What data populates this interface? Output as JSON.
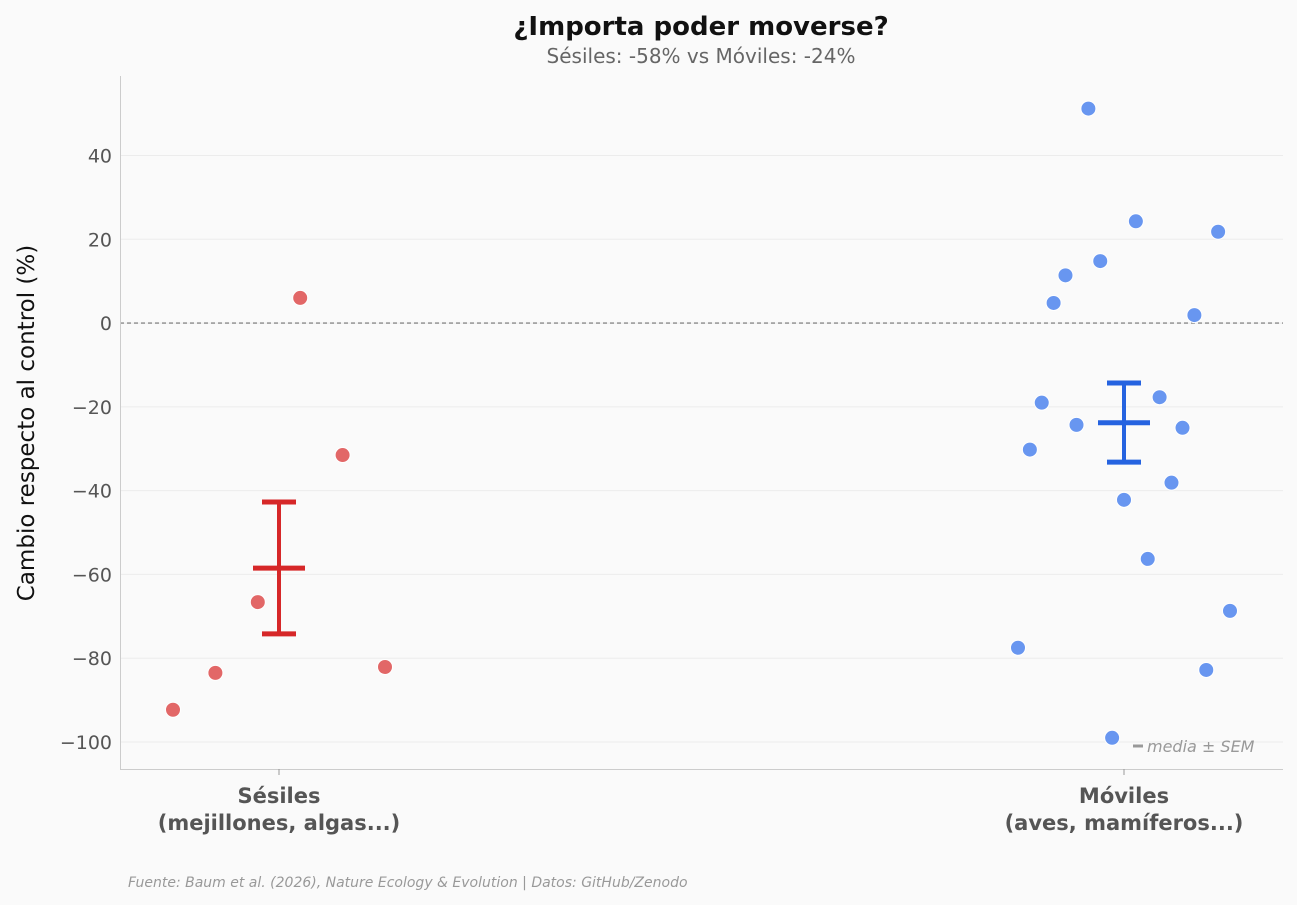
{
  "chart_data": {
    "type": "scatter",
    "title": "¿Importa poder moverse?",
    "subtitle": "Sésiles: -58% vs Móviles: -24%",
    "ylabel": "Cambio respecto al control (%)",
    "xlabel": "",
    "ylim": [
      -106,
      59
    ],
    "yticks": [
      40,
      20,
      0,
      -20,
      -40,
      -60,
      -80,
      -100
    ],
    "ytick_labels": [
      "40",
      "20",
      "0",
      "−20",
      "−40",
      "−60",
      "−80",
      "−100"
    ],
    "reference_line": 0,
    "grid": "horizontal",
    "categories": [
      {
        "line1": "Sésiles",
        "line2": "(mejillones, algas...)"
      },
      {
        "line1": "Móviles",
        "line2": "(aves, mamíferos...)"
      }
    ],
    "series": [
      {
        "name": "Sésiles",
        "color": "#e05a5a",
        "summary_color": "#d62728",
        "mean": -58.5,
        "sem_low": -74.2,
        "sem_high": -42.7,
        "points": [
          {
            "jitter": -0.125,
            "y": -92.3
          },
          {
            "jitter": -0.075,
            "y": -83.5
          },
          {
            "jitter": -0.025,
            "y": -66.6
          },
          {
            "jitter": 0.025,
            "y": 6.0
          },
          {
            "jitter": 0.075,
            "y": -31.5
          },
          {
            "jitter": 0.125,
            "y": -82.1
          }
        ]
      },
      {
        "name": "Móviles",
        "color": "#5b8def",
        "summary_color": "#2563e0",
        "mean": -23.8,
        "sem_low": -33.2,
        "sem_high": -14.3,
        "points": [
          {
            "jitter": -0.125,
            "y": -77.5
          },
          {
            "jitter": -0.111,
            "y": -30.2
          },
          {
            "jitter": -0.097,
            "y": -19.0
          },
          {
            "jitter": -0.083,
            "y": 4.8
          },
          {
            "jitter": -0.069,
            "y": 11.4
          },
          {
            "jitter": -0.056,
            "y": -24.3
          },
          {
            "jitter": -0.042,
            "y": 51.2
          },
          {
            "jitter": -0.028,
            "y": 14.8
          },
          {
            "jitter": -0.014,
            "y": -99.0
          },
          {
            "jitter": 0.0,
            "y": -42.2
          },
          {
            "jitter": 0.014,
            "y": 24.3
          },
          {
            "jitter": 0.028,
            "y": -56.3
          },
          {
            "jitter": 0.042,
            "y": -17.7
          },
          {
            "jitter": 0.056,
            "y": -38.1
          },
          {
            "jitter": 0.069,
            "y": -25.0
          },
          {
            "jitter": 0.083,
            "y": 1.9
          },
          {
            "jitter": 0.097,
            "y": -82.8
          },
          {
            "jitter": 0.111,
            "y": 21.8
          },
          {
            "jitter": 0.125,
            "y": -68.7
          }
        ]
      }
    ],
    "legend": {
      "label": "media ± SEM",
      "location": "bottom-right"
    }
  },
  "source_text": "Fuente: Baum et al. (2026), Nature Ecology & Evolution | Datos: GitHub/Zenodo"
}
